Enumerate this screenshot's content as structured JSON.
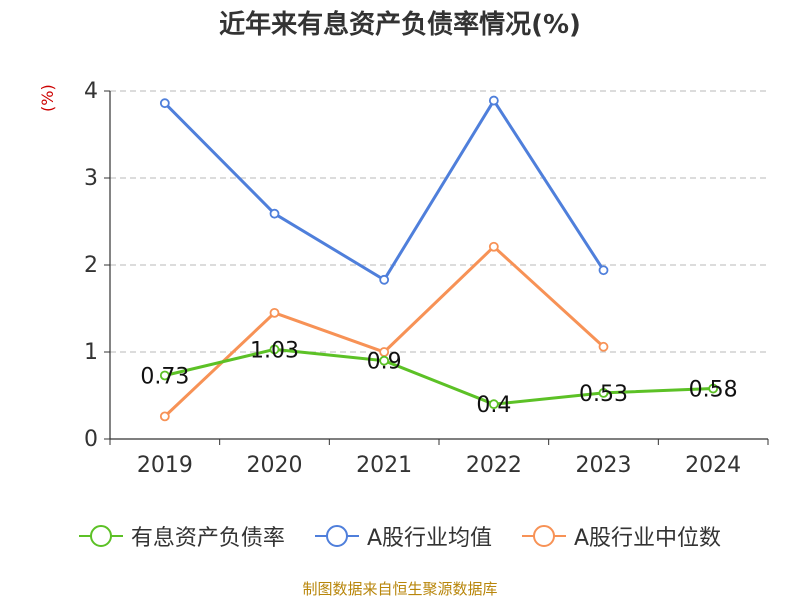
{
  "chart_data": {
    "type": "line",
    "title": "近年来有息资产负债率情况(%)",
    "ylabel": "(%)",
    "categories": [
      "2019",
      "2020",
      "2021",
      "2022",
      "2023",
      "2024"
    ],
    "ylim": [
      0,
      4
    ],
    "yticks": [
      "0",
      "1",
      "2",
      "3",
      "4"
    ],
    "grid": true,
    "legend_position": "bottom",
    "series": [
      {
        "name": "有息资产负债率",
        "color": "#5cc126",
        "values": [
          0.73,
          1.03,
          0.9,
          0.4,
          0.53,
          0.58
        ],
        "labels": [
          "0.73",
          "1.03",
          "0.9",
          "0.4",
          "0.53",
          "0.58"
        ]
      },
      {
        "name": "A股行业均值",
        "color": "#4f7fdb",
        "values": [
          3.86,
          2.59,
          1.83,
          3.89,
          1.94,
          null
        ]
      },
      {
        "name": "A股行业中位数",
        "color": "#f79256",
        "values": [
          0.26,
          1.45,
          1.0,
          2.21,
          1.06,
          null
        ]
      }
    ]
  },
  "footer": "制图数据来自恒生聚源数据库"
}
